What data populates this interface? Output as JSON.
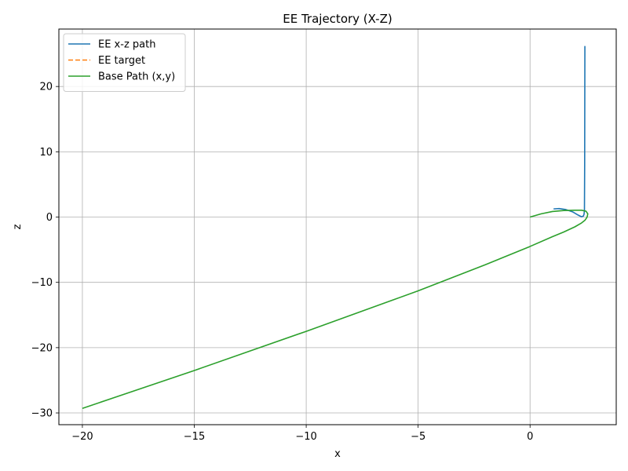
{
  "chart_data": {
    "type": "line",
    "title": "EE Trajectory (X-Z)",
    "xlabel": "x",
    "ylabel": "z",
    "xlim": [
      -21.05,
      3.85
    ],
    "ylim": [
      -31.8,
      28.8
    ],
    "xticks": [
      -20,
      -15,
      -10,
      -5,
      0,
      5
    ],
    "yticks": [
      -30,
      -20,
      -10,
      0,
      10,
      20
    ],
    "grid": true,
    "legend_position": "top-left",
    "series": [
      {
        "name": "EE x-z path",
        "color": "#1f77b4",
        "dash": "solid",
        "x": [
          2.45,
          2.44,
          2.43,
          2.41,
          2.38,
          2.3,
          2.15,
          1.9,
          1.6,
          1.3,
          1.05
        ],
        "y": [
          26.2,
          8.0,
          1.0,
          0.4,
          0.15,
          0.05,
          0.3,
          0.8,
          1.15,
          1.3,
          1.25
        ]
      },
      {
        "name": "EE target",
        "color": "#ff7f0e",
        "dash": "dashed",
        "x": [],
        "y": []
      },
      {
        "name": "Base Path (x,y)",
        "color": "#2ca02c",
        "dash": "solid",
        "x": [
          0.0,
          0.5,
          1.0,
          1.5,
          2.0,
          2.3,
          2.5,
          2.58,
          2.55,
          2.45,
          2.3,
          2.0,
          1.5,
          1.0,
          0.0,
          -2.0,
          -5.0,
          -10.0,
          -15.0,
          -20.0
        ],
        "y": [
          0.0,
          0.5,
          0.85,
          1.0,
          1.05,
          1.05,
          0.9,
          0.5,
          0.0,
          -0.5,
          -0.9,
          -1.5,
          -2.3,
          -3.0,
          -4.5,
          -7.3,
          -11.3,
          -17.5,
          -23.5,
          -29.3
        ]
      }
    ]
  }
}
